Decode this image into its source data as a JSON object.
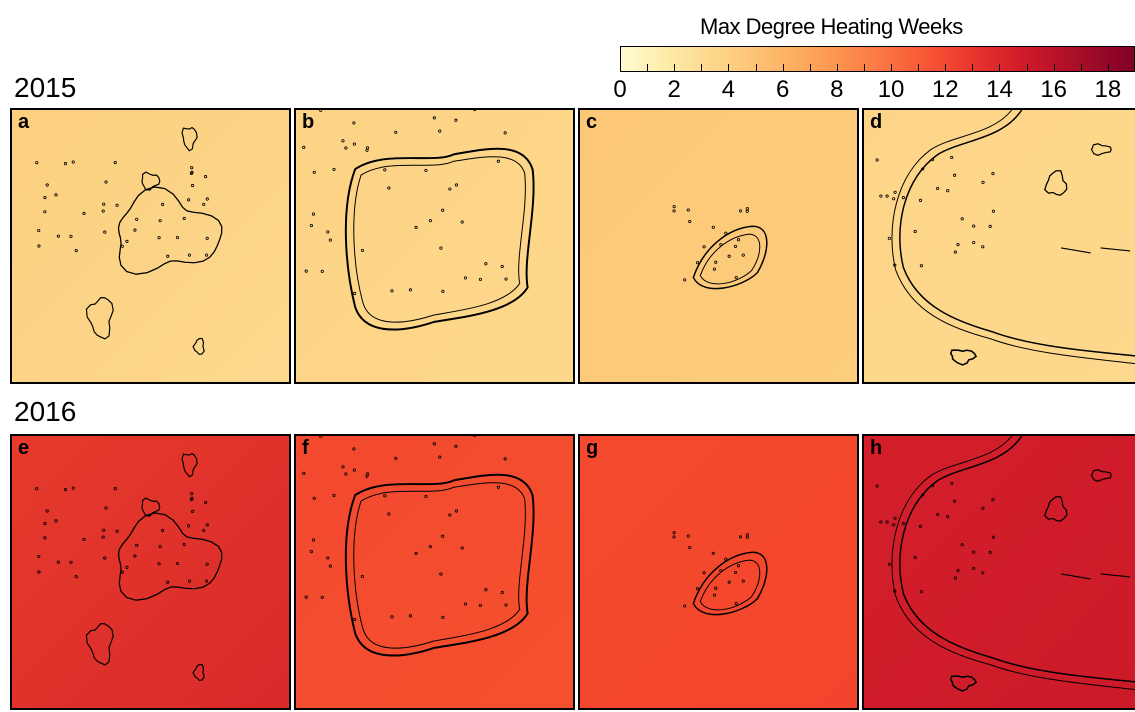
{
  "legend": {
    "title": "Max Degree Heating Weeks",
    "ticks": [
      "0",
      "2",
      "4",
      "6",
      "8",
      "10",
      "12",
      "14",
      "16",
      "18"
    ],
    "colors": [
      "#fffbcf",
      "#fde9a5",
      "#fdd385",
      "#fdb86a",
      "#fc9b54",
      "#fb7a43",
      "#f65535",
      "#e6302c",
      "#cb1829",
      "#a50d28",
      "#800026"
    ]
  },
  "years": [
    "2015",
    "2016"
  ],
  "panels": [
    {
      "letter": "a",
      "year": "2015",
      "fill": "#fccf7e",
      "fill2": "#fdd98f",
      "site": "cluster"
    },
    {
      "letter": "b",
      "year": "2015",
      "fill": "#fdd385",
      "fill2": "#fdd88c",
      "site": "atoll"
    },
    {
      "letter": "c",
      "year": "2015",
      "fill": "#fcc877",
      "fill2": "#fccd7b",
      "site": "island"
    },
    {
      "letter": "d",
      "year": "2015",
      "fill": "#fdd588",
      "fill2": "#fdd98d",
      "site": "arc"
    },
    {
      "letter": "e",
      "year": "2016",
      "fill": "#e63a2c",
      "fill2": "#d92a2a",
      "site": "cluster"
    },
    {
      "letter": "f",
      "year": "2016",
      "fill": "#f3492f",
      "fill2": "#f4502f",
      "site": "atoll"
    },
    {
      "letter": "g",
      "year": "2016",
      "fill": "#f54a2d",
      "fill2": "#f3452d",
      "site": "island"
    },
    {
      "letter": "h",
      "year": "2016",
      "fill": "#d41f2a",
      "fill2": "#cc1a29",
      "site": "arc"
    }
  ]
}
